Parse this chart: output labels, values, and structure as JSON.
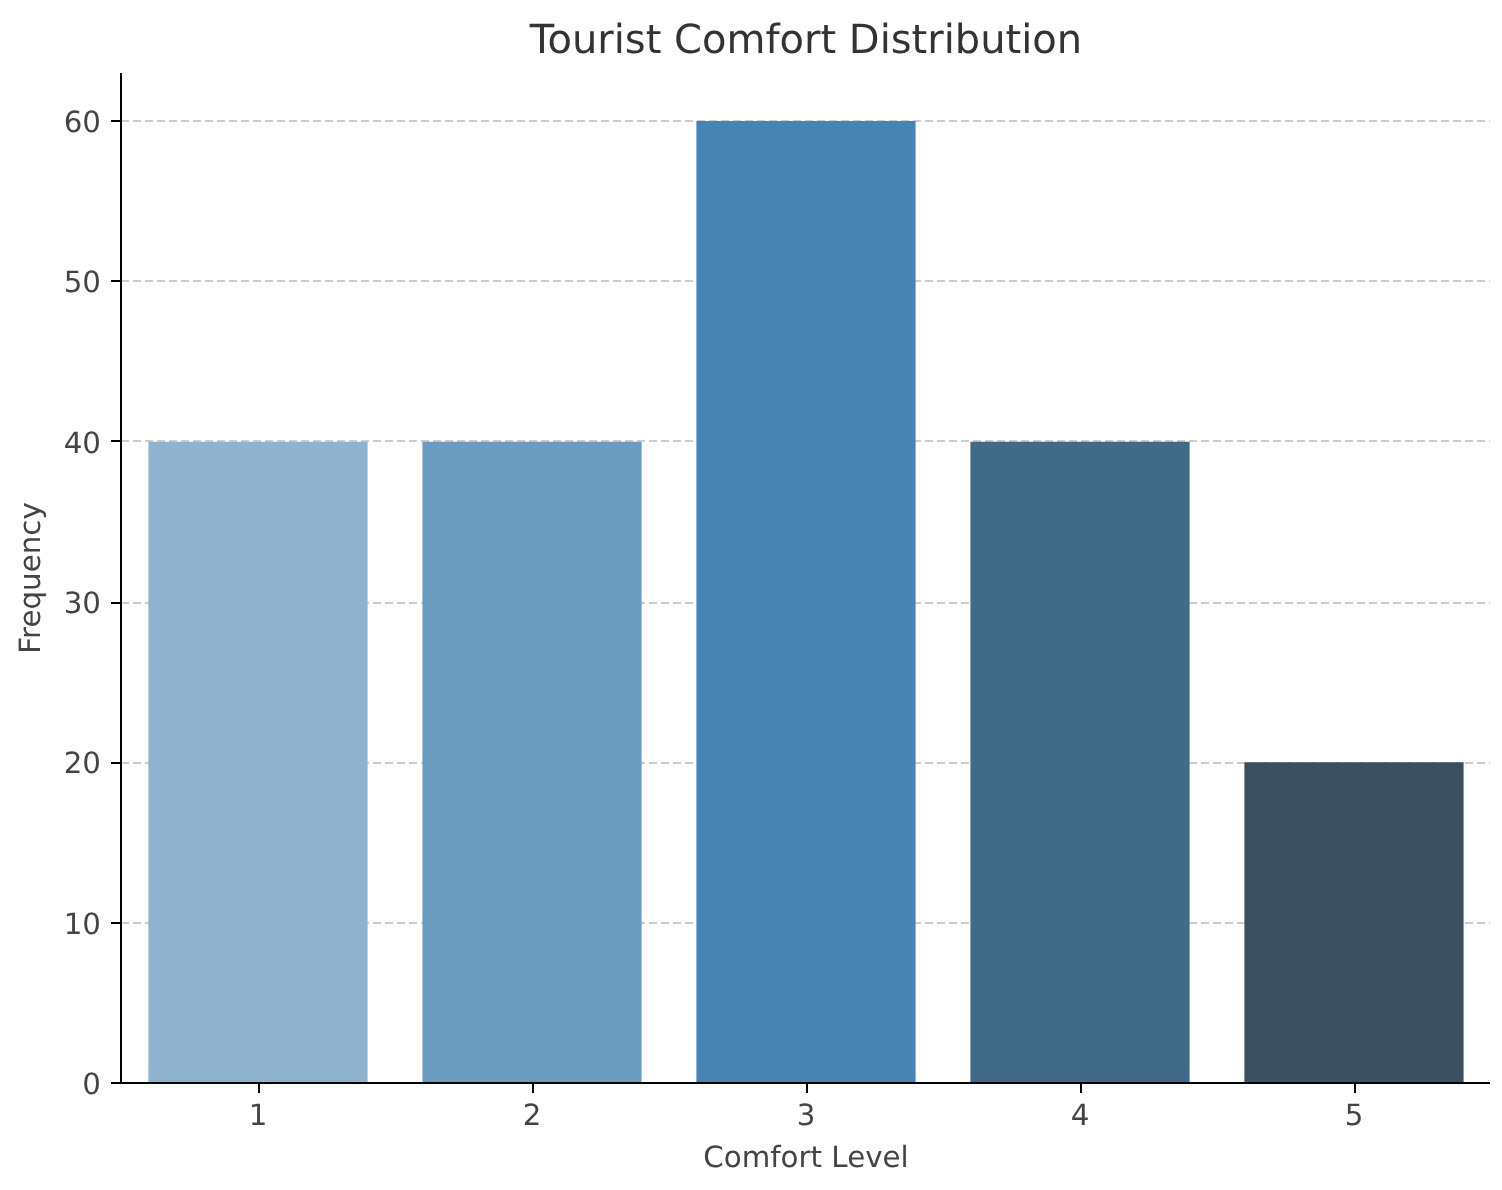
{
  "chart_data": {
    "type": "bar",
    "title": "Tourist Comfort Distribution",
    "xlabel": "Comfort Level",
    "ylabel": "Frequency",
    "categories": [
      "1",
      "2",
      "3",
      "4",
      "5"
    ],
    "values": [
      40,
      40,
      60,
      40,
      20
    ],
    "colors": [
      "#8fb3cf",
      "#6a9cc0",
      "#4884b2",
      "#416a88",
      "#3c4f60"
    ],
    "ylim": [
      0,
      63
    ],
    "yticks": [
      0,
      10,
      20,
      30,
      40,
      50,
      60
    ],
    "grid": "y"
  }
}
